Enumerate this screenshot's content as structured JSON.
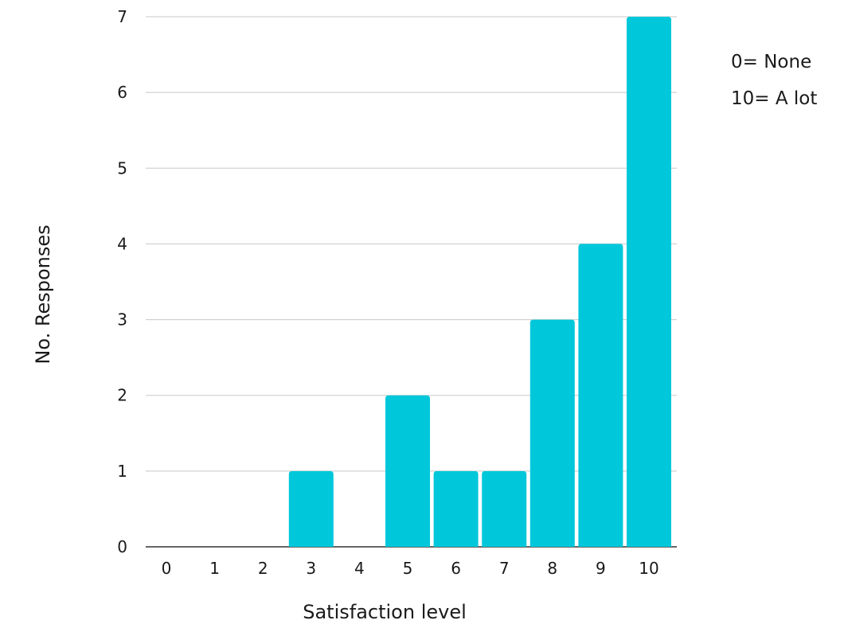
{
  "chart_data": {
    "type": "bar",
    "categories": [
      "0",
      "1",
      "2",
      "3",
      "4",
      "5",
      "6",
      "7",
      "8",
      "9",
      "10"
    ],
    "values": [
      0,
      0,
      0,
      1,
      0,
      2,
      1,
      1,
      3,
      4,
      7
    ],
    "xlabel": "Satisfaction level",
    "ylabel": "No. Responses",
    "ylim": [
      0,
      7
    ],
    "yticks": [
      0,
      1,
      2,
      3,
      4,
      5,
      6,
      7
    ],
    "grid": true,
    "bar_color": "#00C8DA",
    "annotations": [
      "0= None",
      "10= A lot"
    ]
  }
}
